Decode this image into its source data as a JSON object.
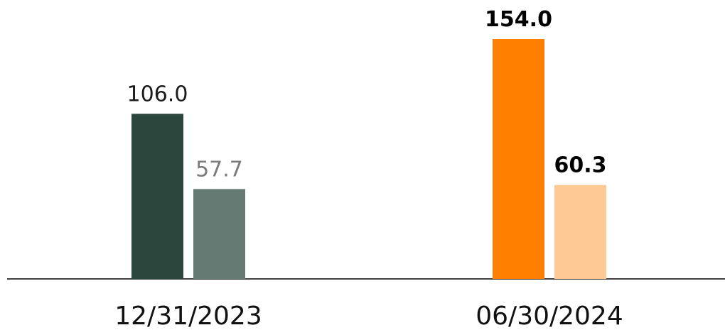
{
  "chart_data": {
    "type": "bar",
    "categories": [
      "12/31/2023",
      "06/30/2024"
    ],
    "series": [
      {
        "colors": [
          "#2b463c",
          "#ff7f00"
        ],
        "label_colors": [
          "#1a1a1a",
          "#000000"
        ],
        "values": [
          106,
          154
        ],
        "value_labels": [
          "106.0",
          "154.0"
        ]
      },
      {
        "colors": [
          "#647a73",
          "#ffc995"
        ],
        "label_colors": [
          "#7a7a7a",
          "#000000"
        ],
        "values": [
          57.7,
          60.3
        ],
        "value_labels": [
          "57.7",
          "60.3"
        ]
      }
    ],
    "label_bold": [
      false,
      true
    ],
    "ylim": [
      0,
      154
    ]
  }
}
